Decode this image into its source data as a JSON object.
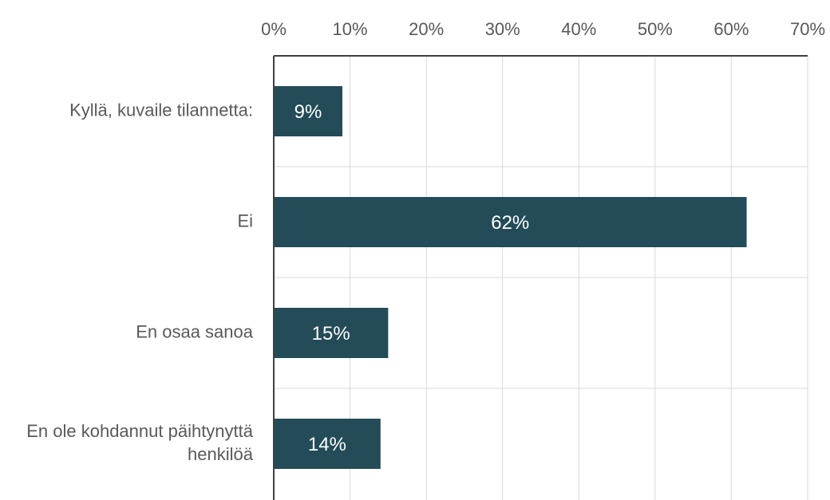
{
  "chart_data": {
    "type": "bar",
    "orientation": "horizontal",
    "categories": [
      [
        "Kyllä, kuvaile tilannetta:"
      ],
      [
        "Ei"
      ],
      [
        "En osaa sanoa"
      ],
      [
        "En ole kohdannut päihtynyttä",
        "henkilöä"
      ]
    ],
    "values": [
      9,
      62,
      15,
      14
    ],
    "data_labels": [
      "9%",
      "62%",
      "15%",
      "14%"
    ],
    "x_ticks": [
      "0%",
      "10%",
      "20%",
      "30%",
      "40%",
      "50%",
      "60%",
      "70%"
    ],
    "xlim": [
      0,
      70
    ],
    "axis_position": "top",
    "grid": true,
    "legend": "none",
    "title": "",
    "xlabel": "",
    "ylabel": "",
    "colors": {
      "bar": "#234b58",
      "grid": "#d9d9d9",
      "axis": "#404040",
      "text": "#595959",
      "label": "#ffffff"
    }
  }
}
